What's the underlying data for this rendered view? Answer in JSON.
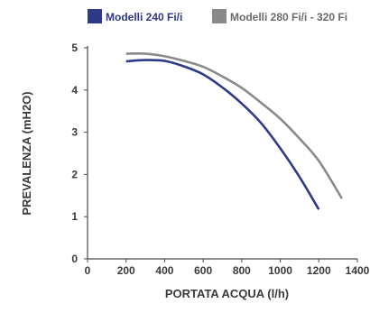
{
  "chart_data": {
    "type": "line",
    "xlabel": "PORTATA ACQUA (l/h)",
    "ylabel": "PREVALENZA (mH2O)",
    "xlim": [
      0,
      1400
    ],
    "ylim": [
      0,
      5
    ],
    "x_ticks": [
      0,
      200,
      400,
      600,
      800,
      1000,
      1200,
      1400
    ],
    "y_ticks": [
      0,
      1,
      2,
      3,
      4,
      5
    ],
    "grid": false,
    "legend_position": "top",
    "series": [
      {
        "name": "Modelli 240 Fi/i",
        "color": "#2e3a87",
        "x": [
          200,
          300,
          400,
          500,
          600,
          700,
          800,
          900,
          1000,
          1100,
          1200
        ],
        "y": [
          4.68,
          4.71,
          4.69,
          4.56,
          4.37,
          4.06,
          3.68,
          3.22,
          2.62,
          1.94,
          1.17
        ]
      },
      {
        "name": "Modelli 280 Fi/i - 320 Fi",
        "color": "#8a8a8a",
        "x": [
          200,
          300,
          400,
          500,
          600,
          700,
          800,
          900,
          1000,
          1100,
          1200,
          1320
        ],
        "y": [
          4.86,
          4.86,
          4.8,
          4.69,
          4.55,
          4.32,
          4.05,
          3.7,
          3.32,
          2.85,
          2.32,
          1.43
        ]
      }
    ]
  }
}
